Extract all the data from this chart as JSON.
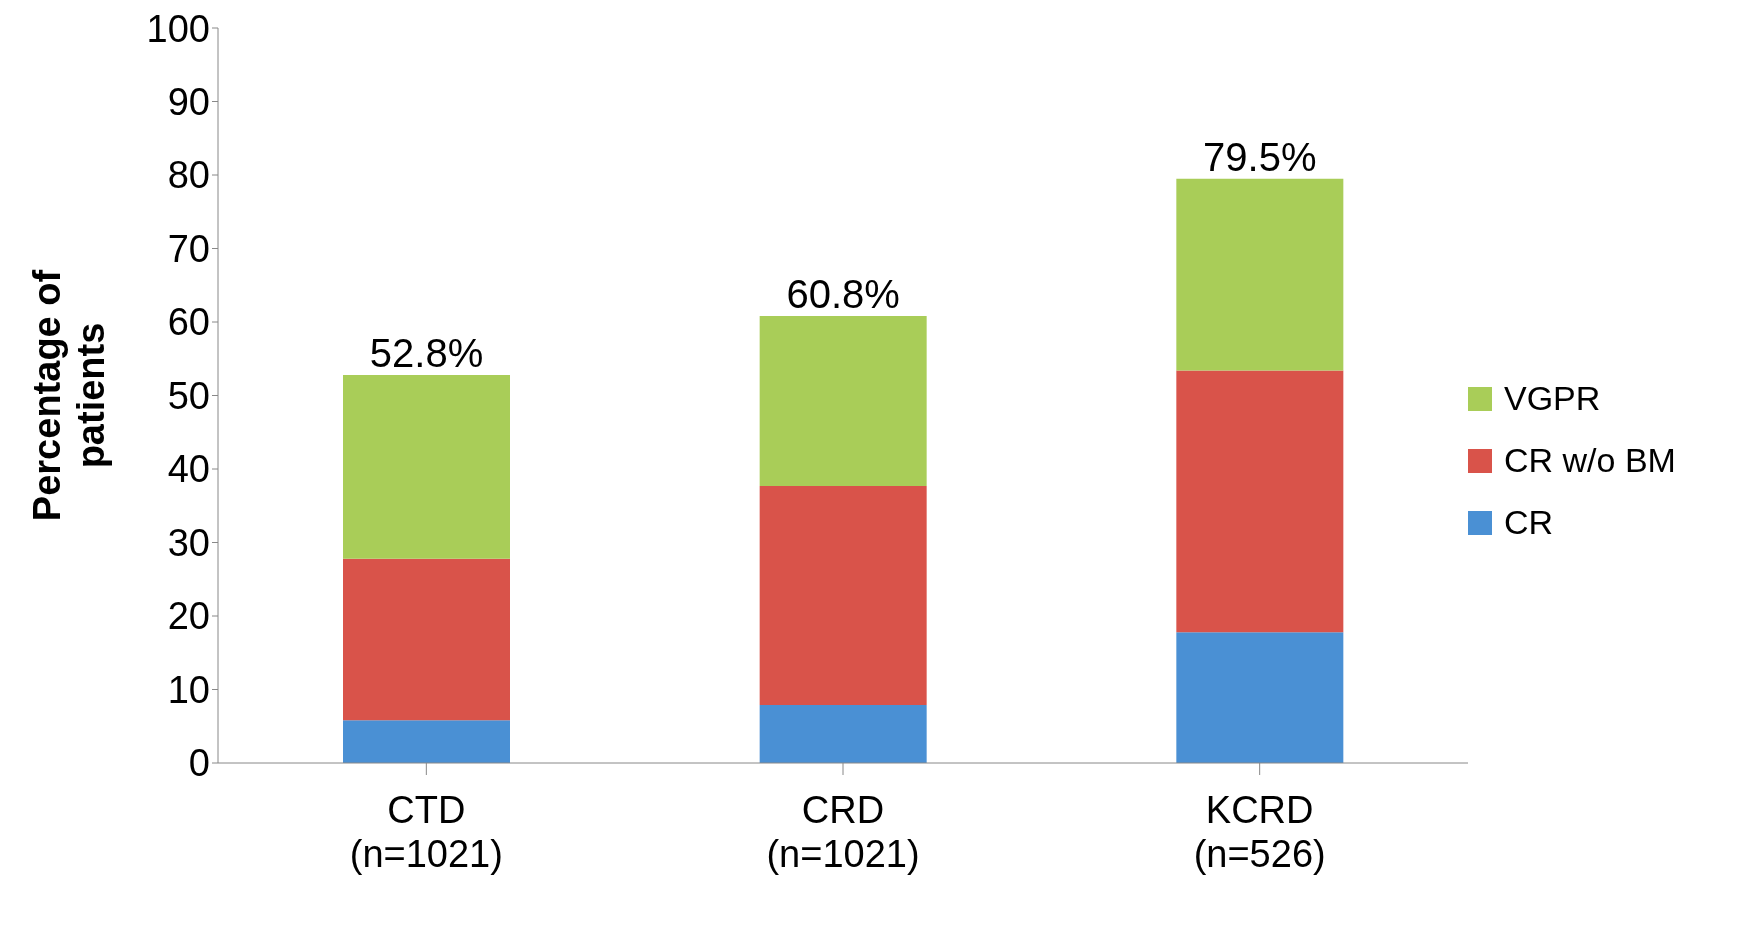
{
  "chart_data": {
    "type": "bar",
    "stacked": true,
    "ylabel": "Percentage of patients",
    "categories": [
      "CTD\n(n=1021)",
      "CRD\n(n=1021)",
      "KCRD\n(n=526)"
    ],
    "series": [
      {
        "name": "CR",
        "color": "#4a90d4",
        "values": [
          5.8,
          7.9,
          17.8
        ]
      },
      {
        "name": "CR w/o BM",
        "color": "#d9534a",
        "values": [
          22.0,
          29.8,
          35.6
        ]
      },
      {
        "name": "VGPR",
        "color": "#a9cd58",
        "values": [
          25.0,
          23.1,
          26.1
        ]
      }
    ],
    "totals": [
      "52.8%",
      "60.8%",
      "79.5%"
    ],
    "ylim": [
      0,
      100
    ],
    "yticks": [
      0,
      10,
      20,
      30,
      40,
      50,
      60,
      70,
      80,
      90,
      100
    ],
    "grid": false,
    "legend": "right"
  }
}
